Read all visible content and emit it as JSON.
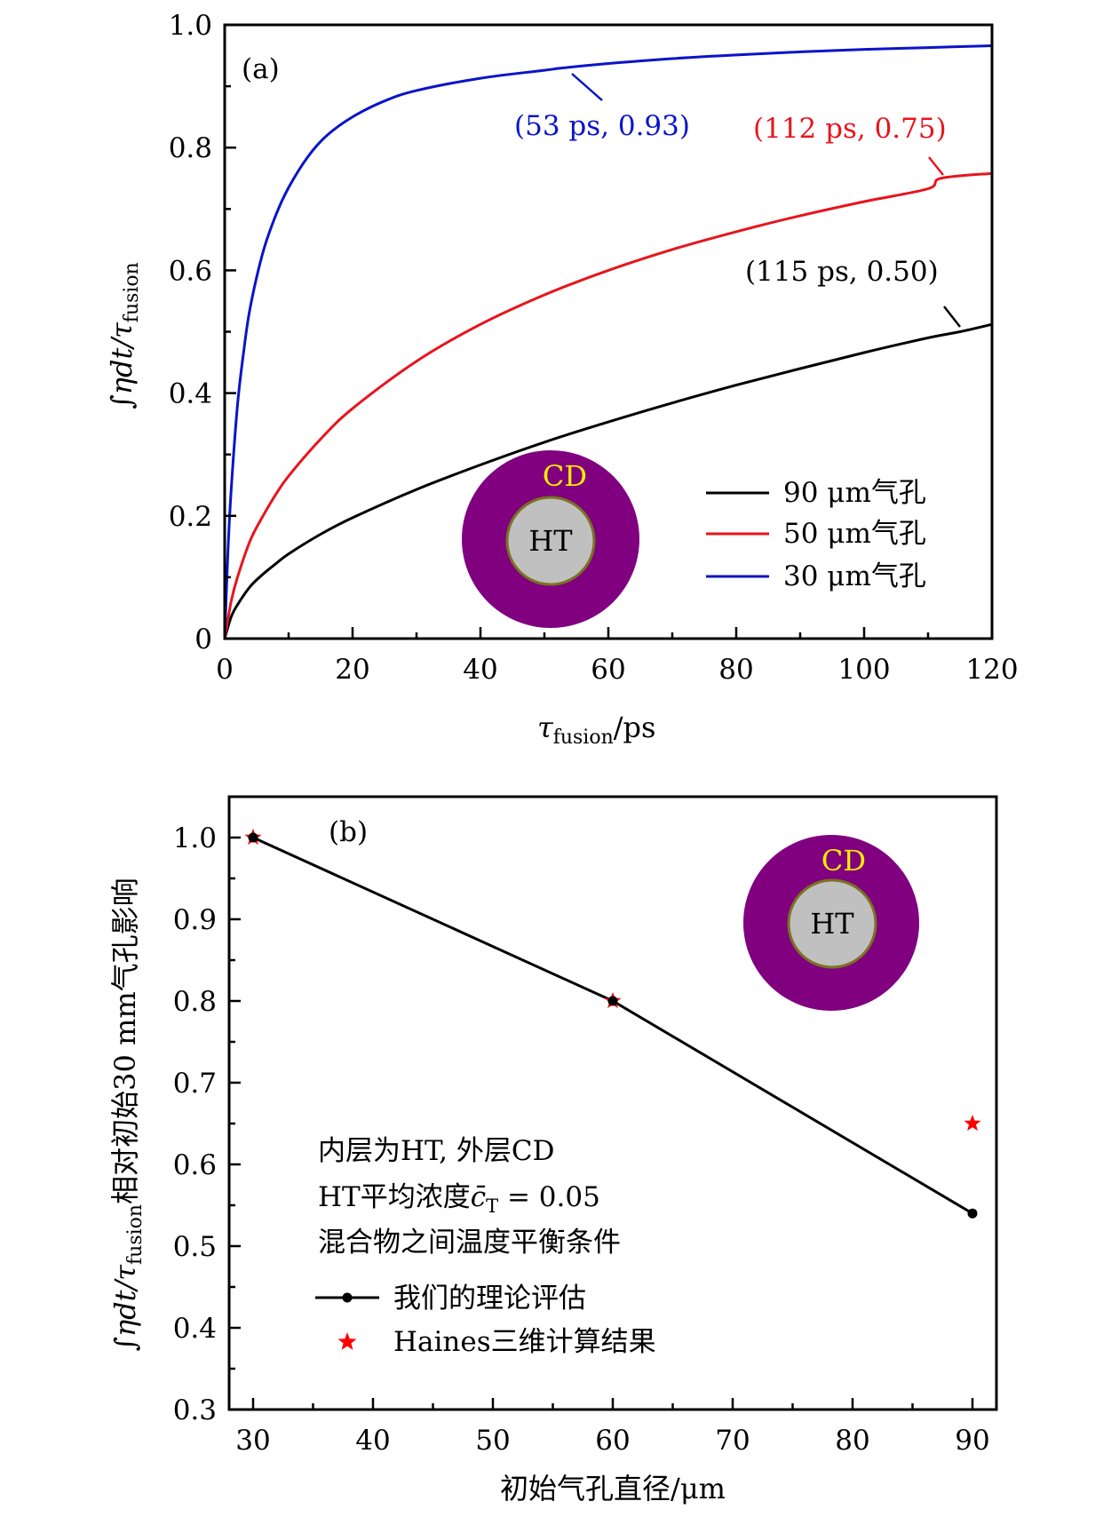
{
  "chart_data": [
    {
      "id": "a",
      "type": "line",
      "panel_label": "(a)",
      "title": "",
      "xlabel": "τ_fusion/ps",
      "xlabel_main": "τ",
      "xlabel_sub": "fusion",
      "xlabel_tail": "/ps",
      "ylabel": "∫ηdt/τ_fusion",
      "ylabel_main": "∫ηdt/τ",
      "ylabel_sub": "fusion",
      "xlim": [
        0,
        120
      ],
      "ylim": [
        0,
        1.0
      ],
      "x_ticks": [
        0,
        20,
        40,
        60,
        80,
        100,
        120
      ],
      "x_tick_labels": [
        "0",
        "20",
        "40",
        "60",
        "80",
        "100",
        "120"
      ],
      "x_minor_ticks": [
        10,
        30,
        50,
        70,
        90,
        110
      ],
      "y_ticks": [
        0,
        0.2,
        0.4,
        0.6,
        0.8,
        1.0
      ],
      "y_tick_labels": [
        "0",
        "0.2",
        "0.4",
        "0.6",
        "0.8",
        "1.0"
      ],
      "y_minor_ticks": [
        0.1,
        0.3,
        0.5,
        0.7,
        0.9
      ],
      "grid": false,
      "legend_position": "bottom-right",
      "series": [
        {
          "name": "90 μm气孔",
          "color": "#000000",
          "x": [
            0,
            1,
            2,
            4,
            6,
            8,
            10,
            15,
            20,
            30,
            40,
            50,
            60,
            70,
            80,
            90,
            100,
            110,
            115,
            120
          ],
          "y": [
            0,
            0.035,
            0.055,
            0.085,
            0.105,
            0.122,
            0.138,
            0.17,
            0.197,
            0.243,
            0.283,
            0.32,
            0.353,
            0.384,
            0.413,
            0.44,
            0.466,
            0.49,
            0.5,
            0.512
          ]
        },
        {
          "name": "50 μm气孔",
          "color": "#e8141c",
          "x": [
            0,
            1,
            2,
            4,
            6,
            8,
            10,
            15,
            20,
            30,
            40,
            50,
            60,
            70,
            80,
            90,
            100,
            110,
            112,
            120
          ],
          "y": [
            0,
            0.06,
            0.1,
            0.16,
            0.2,
            0.235,
            0.265,
            0.325,
            0.375,
            0.452,
            0.512,
            0.56,
            0.6,
            0.634,
            0.663,
            0.689,
            0.712,
            0.733,
            0.75,
            0.758
          ]
        },
        {
          "name": "30 μm气孔",
          "color": "#0a14c8",
          "x": [
            0,
            0.5,
            1,
            2,
            3,
            4,
            6,
            8,
            10,
            13,
            16,
            20,
            25,
            30,
            40,
            50,
            53,
            60,
            70,
            80,
            90,
            100,
            110,
            120
          ],
          "y": [
            0,
            0.14,
            0.24,
            0.38,
            0.47,
            0.54,
            0.63,
            0.69,
            0.735,
            0.785,
            0.82,
            0.85,
            0.876,
            0.893,
            0.913,
            0.926,
            0.93,
            0.937,
            0.945,
            0.951,
            0.956,
            0.96,
            0.963,
            0.966
          ]
        }
      ],
      "annotations": [
        {
          "text": "(53 ps, 0.93)",
          "x": 53,
          "y": 0.93,
          "color": "#0a14c8"
        },
        {
          "text": "(112 ps, 0.75)",
          "x": 112,
          "y": 0.75,
          "color": "#e8141c"
        },
        {
          "text": "(115 ps, 0.50)",
          "x": 115,
          "y": 0.5,
          "color": "#000000"
        }
      ],
      "inset": {
        "outer_label": "CD",
        "inner_label": "HT",
        "outer_color": "#800080",
        "inner_color": "#c0c0c0",
        "ring_color": "#7a7320",
        "outer_label_color": "#ffee00"
      }
    },
    {
      "id": "b",
      "type": "line",
      "panel_label": "(b)",
      "title": "",
      "xlabel": "初始气孔直径/μm",
      "ylabel": "∫ηdt/τ_fusion相对初始30 mm气孔影响",
      "ylabel_main": "∫ηdt/τ",
      "ylabel_sub": "fusion",
      "ylabel_tail": "相对初始30 mm气孔影响",
      "xlim": [
        28,
        92
      ],
      "ylim": [
        0.3,
        1.05
      ],
      "x_ticks": [
        30,
        40,
        50,
        60,
        70,
        80,
        90
      ],
      "x_tick_labels": [
        "30",
        "40",
        "50",
        "60",
        "70",
        "80",
        "90"
      ],
      "x_minor_ticks": [
        35,
        45,
        55,
        65,
        75,
        85
      ],
      "y_ticks": [
        0.3,
        0.4,
        0.5,
        0.6,
        0.7,
        0.8,
        0.9,
        1.0
      ],
      "y_tick_labels": [
        "0.3",
        "0.4",
        "0.5",
        "0.6",
        "0.7",
        "0.8",
        "0.9",
        "1.0"
      ],
      "y_minor_ticks": [
        0.35,
        0.45,
        0.55,
        0.65,
        0.75,
        0.85,
        0.95
      ],
      "grid": false,
      "legend_position": "bottom-left",
      "series": [
        {
          "name": "我们的理论评估",
          "marker": "circle",
          "color": "#000000",
          "x": [
            30,
            60,
            90
          ],
          "y": [
            1.0,
            0.8,
            0.54
          ]
        },
        {
          "name": "Haines三维计算结果",
          "marker": "star",
          "color": "#ff0000",
          "x": [
            30,
            60,
            90
          ],
          "y": [
            1.0,
            0.8,
            0.65
          ]
        }
      ],
      "text_block": [
        "内层为HT, 外层CD",
        "HT平均浓度c̄T = 0.05",
        "混合物之间温度平衡条件"
      ],
      "text_block_line2_prefix": "HT平均浓度",
      "text_block_line2_var": "c̄",
      "text_block_line2_sub": "T",
      "text_block_line2_tail": " = 0.05",
      "inset": {
        "outer_label": "CD",
        "inner_label": "HT",
        "outer_color": "#800080",
        "inner_color": "#c0c0c0",
        "ring_color": "#7a7320",
        "outer_label_color": "#ffee00"
      }
    }
  ]
}
